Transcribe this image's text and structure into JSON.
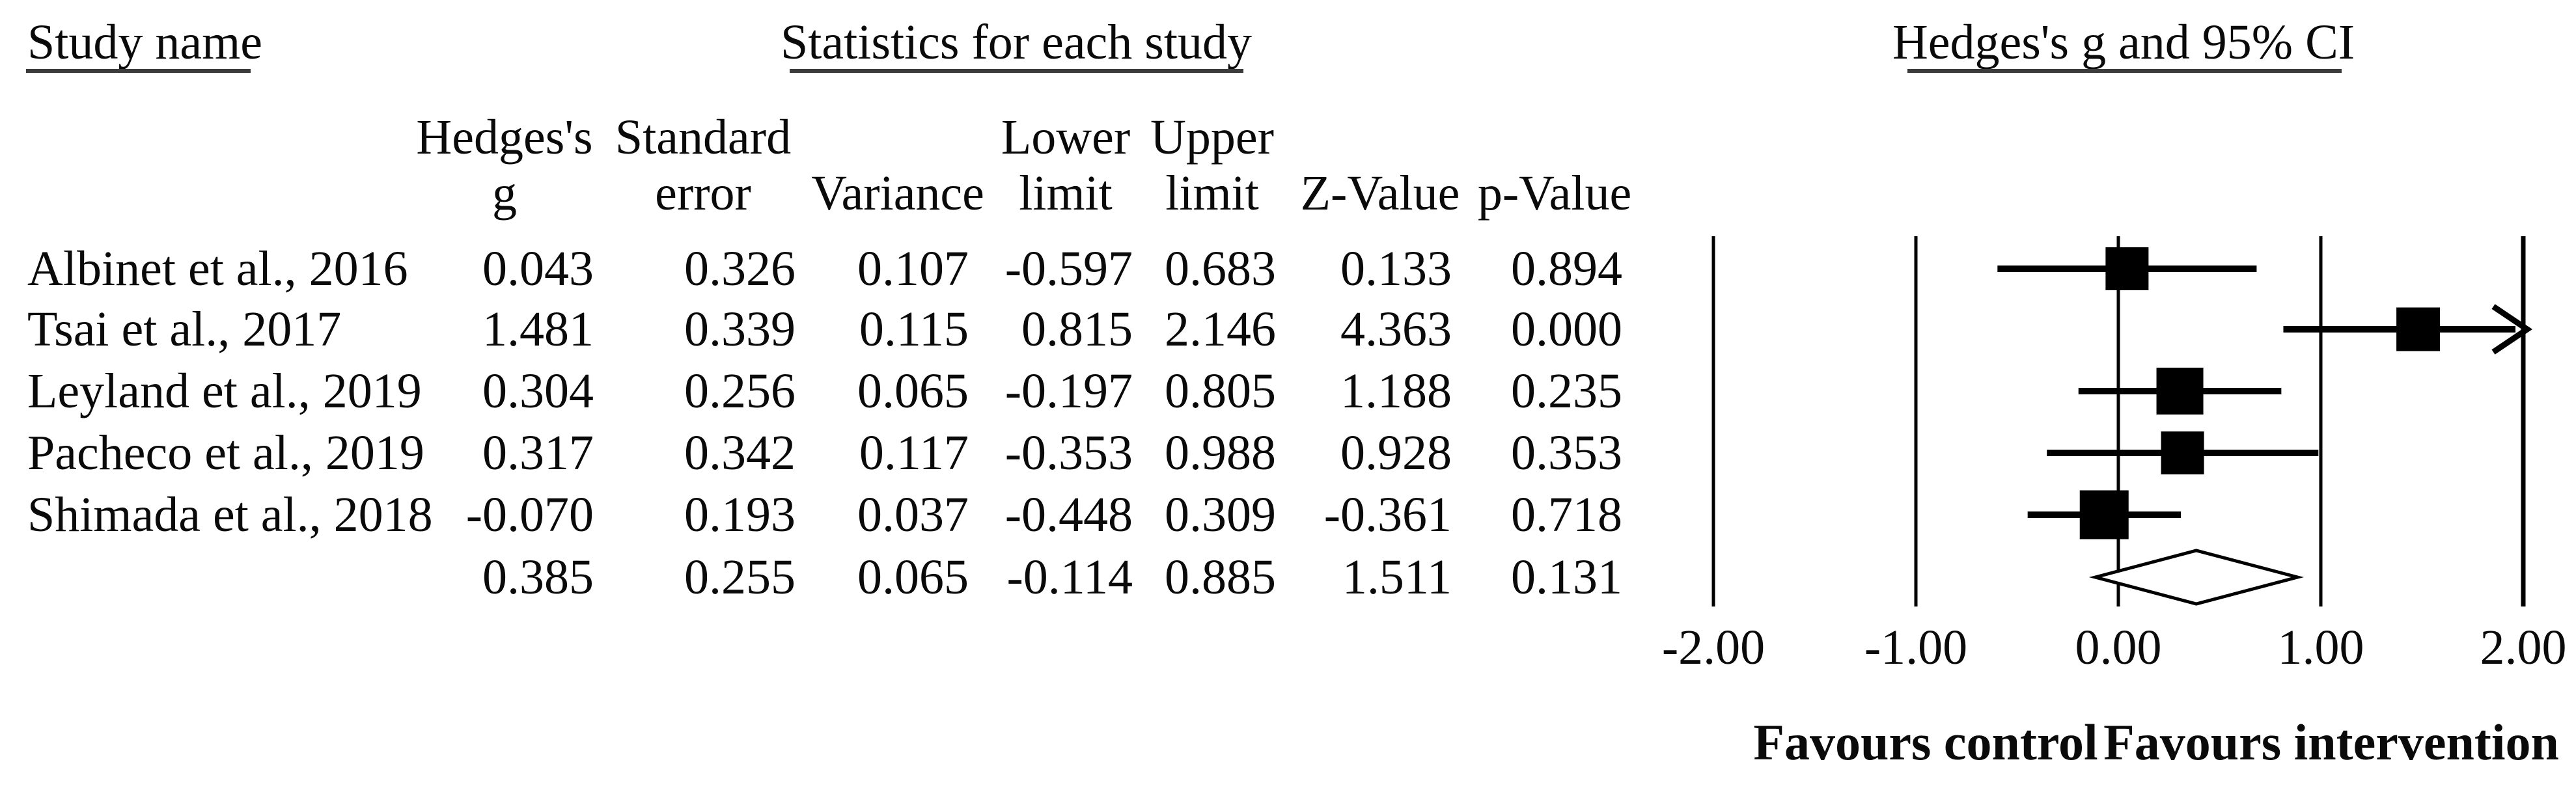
{
  "figure": {
    "background": "#ffffff",
    "text_color": "#0a0a0a",
    "line_color": "#000000",
    "rule_color": "#3c3c3c"
  },
  "titles": {
    "study_name": "Study name",
    "statistics": "Statistics for each study",
    "plot": "Hedges's g and 95% CI"
  },
  "column_headers": {
    "hedges_line1": "Hedges's",
    "hedges_line2": "g",
    "se_line1": "Standard",
    "se_line2": "error",
    "variance": "Variance",
    "lower_line1": "Lower",
    "lower_line2": "limit",
    "upper_line1": "Upper",
    "upper_line2": "limit",
    "z": "Z-Value",
    "p": "p-Value"
  },
  "table": {
    "rows": [
      {
        "name": "Albinet et al., 2016",
        "cells": [
          "0.043",
          "0.326",
          "0.107",
          "-0.597",
          "0.683",
          "0.133",
          "0.894"
        ]
      },
      {
        "name": "Tsai et al., 2017",
        "cells": [
          "1.481",
          "0.339",
          "0.115",
          "0.815",
          "2.146",
          "4.363",
          "0.000"
        ]
      },
      {
        "name": "Leyland et al., 2019",
        "cells": [
          "0.304",
          "0.256",
          "0.065",
          "-0.197",
          "0.805",
          "1.188",
          "0.235"
        ]
      },
      {
        "name": "Pacheco et al., 2019",
        "cells": [
          "0.317",
          "0.342",
          "0.117",
          "-0.353",
          "0.988",
          "0.928",
          "0.353"
        ]
      },
      {
        "name": "Shimada et al., 2018",
        "cells": [
          "-0.070",
          "0.193",
          "0.037",
          "-0.448",
          "0.309",
          "-0.361",
          "0.718"
        ]
      },
      {
        "name": "",
        "cells": [
          "0.385",
          "0.255",
          "0.065",
          "-0.114",
          "0.885",
          "1.511",
          "0.131"
        ]
      }
    ]
  },
  "axis": {
    "tick_labels": [
      "-2.00",
      "-1.00",
      "0.00",
      "1.00",
      "2.00"
    ]
  },
  "footer": {
    "left_label": "Favours control",
    "right_label": "Favours intervention"
  },
  "chart_data": {
    "type": "scatter",
    "variant": "forest-plot",
    "title": "Hedges's g and 95% CI",
    "effect_measure": "Hedges's g",
    "xlim": [
      -2.0,
      2.0
    ],
    "x_ticks": [
      -2.0,
      -1.0,
      0.0,
      1.0,
      2.0
    ],
    "x_tick_labels": [
      "-2.00",
      "-1.00",
      "0.00",
      "1.00",
      "2.00"
    ],
    "grid": "vertical-line-at-each-tick",
    "legend_position": "none",
    "footer_annotations": [
      "Favours control",
      "Favours intervention"
    ],
    "studies": [
      {
        "name": "Albinet et al., 2016",
        "hedges_g": 0.043,
        "standard_error": 0.326,
        "variance": 0.107,
        "lower_limit": -0.597,
        "upper_limit": 0.683,
        "z_value": 0.133,
        "p_value": 0.894
      },
      {
        "name": "Tsai et al., 2017",
        "hedges_g": 1.481,
        "standard_error": 0.339,
        "variance": 0.115,
        "lower_limit": 0.815,
        "upper_limit": 2.146,
        "z_value": 4.363,
        "p_value": 0.0
      },
      {
        "name": "Leyland et al., 2019",
        "hedges_g": 0.304,
        "standard_error": 0.256,
        "variance": 0.065,
        "lower_limit": -0.197,
        "upper_limit": 0.805,
        "z_value": 1.188,
        "p_value": 0.235
      },
      {
        "name": "Pacheco et al., 2019",
        "hedges_g": 0.317,
        "standard_error": 0.342,
        "variance": 0.117,
        "lower_limit": -0.353,
        "upper_limit": 0.988,
        "z_value": 0.928,
        "p_value": 0.353
      },
      {
        "name": "Shimada et al., 2018",
        "hedges_g": -0.07,
        "standard_error": 0.193,
        "variance": 0.037,
        "lower_limit": -0.448,
        "upper_limit": 0.309,
        "z_value": -0.361,
        "p_value": 0.718
      }
    ],
    "overall": {
      "hedges_g": 0.385,
      "standard_error": 0.255,
      "variance": 0.065,
      "lower_limit": -0.114,
      "upper_limit": 0.885,
      "z_value": 1.511,
      "p_value": 0.131,
      "marker": "open-diamond"
    }
  }
}
